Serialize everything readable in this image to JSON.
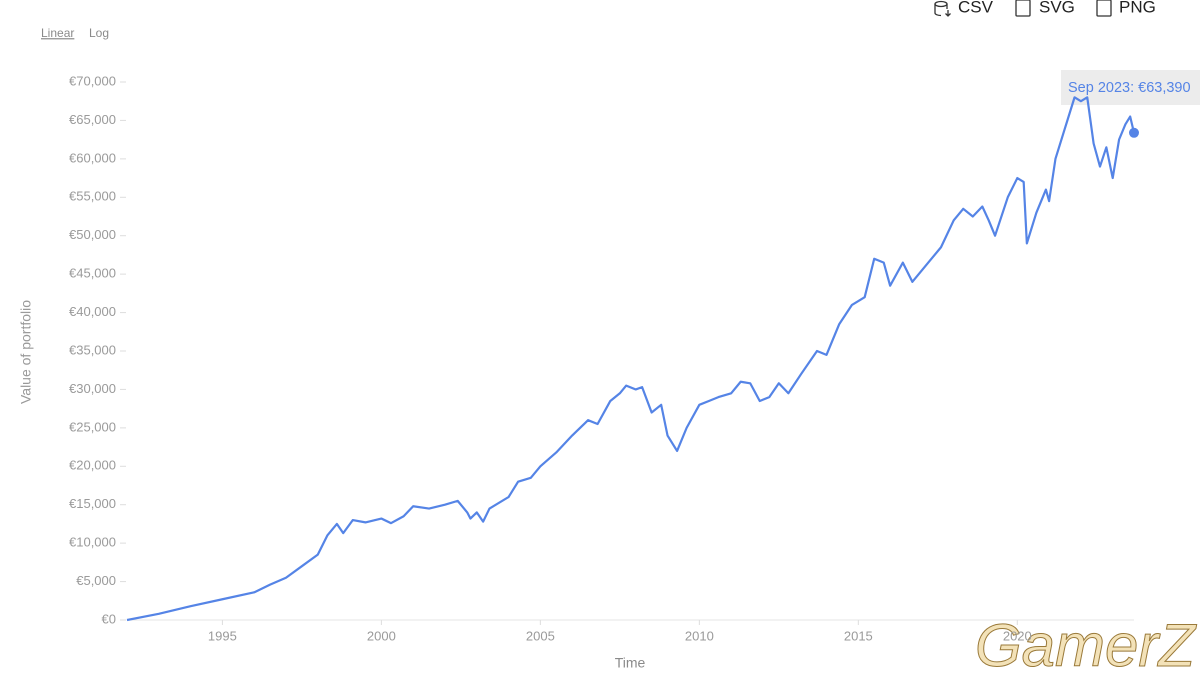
{
  "ui": {
    "scale_options": [
      "Linear",
      "Log"
    ],
    "downloads": [
      "CSV",
      "SVG",
      "PNG"
    ],
    "watermark": "GamerZ"
  },
  "chart_data": {
    "type": "line",
    "x_label": "Time",
    "y_label": "Value of portfolio",
    "annotation": "Sep 2023: €63,390",
    "log_scale": false,
    "grid": false,
    "color": "#5584e6",
    "xlim": [
      1992.0,
      2023.67
    ],
    "xticks": [
      1995,
      2000,
      2005,
      2010,
      2015,
      2020
    ],
    "ylim": [
      0,
      70000
    ],
    "yticks": [
      {
        "value": 0,
        "label": "€0"
      },
      {
        "value": 5000,
        "label": "€5,000"
      },
      {
        "value": 10000,
        "label": "€10,000"
      },
      {
        "value": 15000,
        "label": "€15,000"
      },
      {
        "value": 20000,
        "label": "€20,000"
      },
      {
        "value": 25000,
        "label": "€25,000"
      },
      {
        "value": 30000,
        "label": "€30,000"
      },
      {
        "value": 35000,
        "label": "€35,000"
      },
      {
        "value": 40000,
        "label": "€40,000"
      },
      {
        "value": 45000,
        "label": "€45,000"
      },
      {
        "value": 50000,
        "label": "€50,000"
      },
      {
        "value": 55000,
        "label": "€55,000"
      },
      {
        "value": 60000,
        "label": "€60,000"
      },
      {
        "value": 65000,
        "label": "€65,000"
      },
      {
        "value": 70000,
        "label": "€70,000"
      }
    ],
    "x": [
      1992.0,
      1993,
      1994,
      1995,
      1996,
      1996.5,
      1997,
      1997.5,
      1998,
      1998.3,
      1998.6,
      1998.8,
      1999.1,
      1999.5,
      2000,
      2000.3,
      2000.7,
      2001,
      2001.5,
      2002,
      2002.4,
      2002.7,
      2002.8,
      2003.0,
      2003.2,
      2003.4,
      2004,
      2004.3,
      2004.7,
      2005,
      2005.5,
      2006,
      2006.5,
      2006.8,
      2007.2,
      2007.5,
      2007.7,
      2008,
      2008.2,
      2008.5,
      2008.8,
      2009.0,
      2009.3,
      2009.6,
      2010,
      2010.3,
      2010.6,
      2011,
      2011.3,
      2011.6,
      2011.9,
      2012.2,
      2012.5,
      2012.8,
      2013.2,
      2013.7,
      2014,
      2014.4,
      2014.8,
      2015.2,
      2015.5,
      2015.8,
      2016.0,
      2016.4,
      2016.7,
      2017.2,
      2017.6,
      2018,
      2018.3,
      2018.6,
      2018.9,
      2019.1,
      2019.3,
      2019.7,
      2020.0,
      2020.2,
      2020.3,
      2020.6,
      2020.9,
      2021.0,
      2021.2,
      2021.5,
      2021.8,
      2022.0,
      2022.2,
      2022.4,
      2022.6,
      2022.8,
      2023.0,
      2023.2,
      2023.4,
      2023.55,
      2023.67
    ],
    "values": [
      0,
      800,
      1800,
      2700,
      3600,
      4600,
      5500,
      7000,
      8500,
      11000,
      12500,
      11300,
      13000,
      12700,
      13200,
      12600,
      13500,
      14800,
      14500,
      15000,
      15500,
      14000,
      13200,
      14000,
      12800,
      14500,
      16000,
      18000,
      18500,
      20000,
      21800,
      24000,
      26000,
      25500,
      28500,
      29500,
      30500,
      30000,
      30300,
      27000,
      28000,
      24000,
      22000,
      25000,
      28000,
      28500,
      29000,
      29500,
      31000,
      30800,
      28500,
      29000,
      30800,
      29500,
      32000,
      35000,
      34500,
      38500,
      41000,
      42000,
      47000,
      46500,
      43500,
      46500,
      44000,
      46500,
      48500,
      52000,
      53500,
      52500,
      53800,
      52000,
      50000,
      55000,
      57500,
      57000,
      49000,
      53000,
      56000,
      54500,
      60000,
      64000,
      68000,
      67500,
      68000,
      62000,
      59000,
      61500,
      57500,
      62500,
      64500,
      65500,
      63390
    ]
  }
}
